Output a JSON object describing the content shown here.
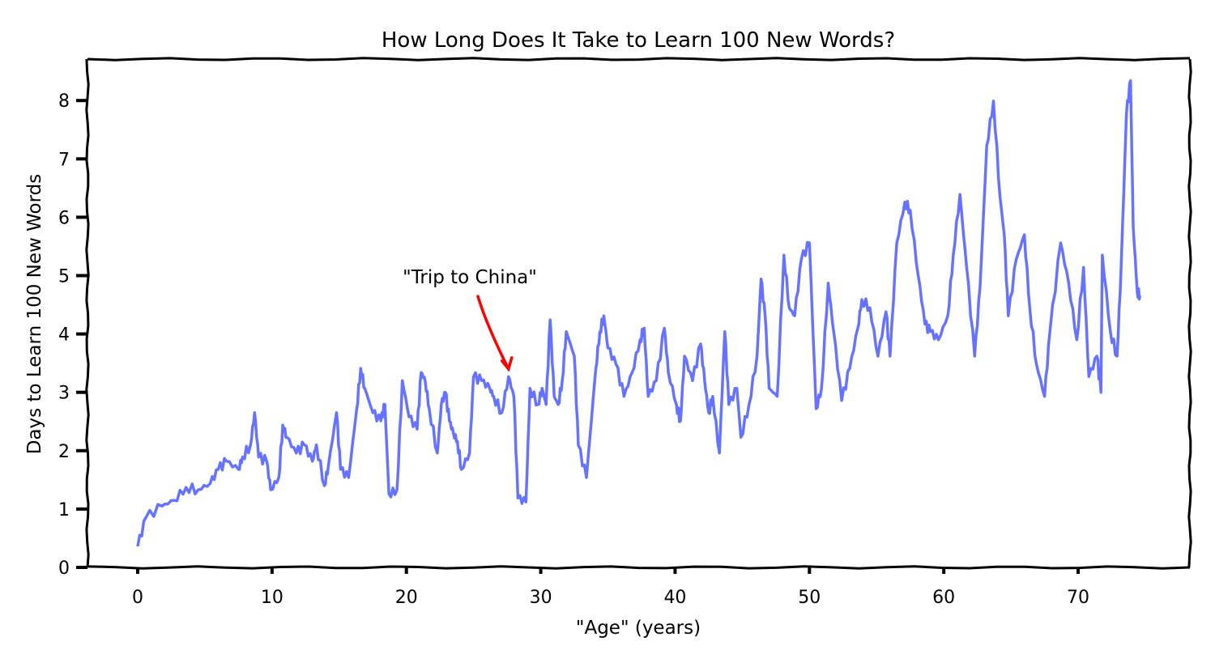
{
  "chart_data": {
    "type": "line",
    "title": "How Long Does It Take to Learn 100 New Words?",
    "xlabel": "\"Age\" (years)",
    "ylabel": "Days to Learn 100 New Words",
    "xlim": [
      -3.6,
      78
    ],
    "ylim": [
      -0.15,
      8.6
    ],
    "xticks": [
      0,
      10,
      20,
      30,
      40,
      50,
      60,
      70
    ],
    "yticks": [
      0,
      1,
      2,
      3,
      4,
      5,
      6,
      7,
      8
    ],
    "grid": false,
    "style": "xkcd",
    "series": [
      {
        "color": "#6673ff",
        "x": [
          0,
          0.6,
          1.8,
          2.7,
          3.6,
          4.5,
          5.4,
          6.0,
          6.6,
          7.5,
          7.8,
          8.4,
          8.7,
          9.0,
          9.6,
          9.9,
          10.5,
          10.8,
          11.1,
          11.8,
          12.4,
          13.0,
          13.3,
          13.9,
          14.2,
          14.8,
          15.1,
          15.7,
          16.3,
          16.6,
          16.9,
          17.5,
          18.1,
          18.4,
          18.7,
          19.3,
          19.7,
          20.2,
          20.8,
          21.1,
          21.4,
          21.7,
          22.3,
          22.6,
          22.9,
          23.2,
          23.5,
          23.8,
          24.1,
          24.7,
          25.0,
          25.6,
          26.2,
          26.5,
          27.1,
          27.6,
          28.0,
          28.3,
          28.9,
          29.2,
          29.8,
          30.1,
          30.4,
          30.7,
          31.0,
          31.3,
          31.6,
          31.9,
          32.5,
          32.8,
          33.4,
          34.1,
          34.4,
          34.7,
          35.0,
          35.6,
          36.2,
          36.8,
          37.4,
          37.7,
          38.0,
          38.6,
          39.2,
          39.5,
          40.1,
          40.4,
          40.7,
          41.3,
          41.9,
          42.2,
          42.5,
          42.8,
          43.3,
          43.7,
          44.0,
          44.6,
          44.9,
          45.5,
          46.1,
          46.4,
          46.7,
          47.0,
          47.6,
          48.1,
          48.5,
          48.9,
          49.4,
          50.0,
          50.5,
          50.9,
          51.4,
          51.8,
          52.4,
          53.0,
          53.6,
          53.9,
          54.5,
          55.1,
          55.7,
          56.0,
          56.5,
          57.1,
          57.5,
          58.1,
          58.6,
          59.0,
          59.6,
          60.3,
          60.7,
          61.2,
          61.7,
          62.3,
          62.7,
          63.2,
          63.7,
          64.2,
          64.5,
          64.8,
          65.4,
          66.0,
          66.4,
          66.9,
          67.5,
          67.9,
          68.7,
          69.3,
          69.9,
          70.4,
          70.8,
          71.4,
          71.7,
          71.8,
          72.4,
          72.9,
          73.2,
          73.6,
          73.9,
          74.1,
          74.4,
          74.6
        ],
        "values": [
          0.36,
          0.85,
          1.05,
          1.15,
          1.37,
          1.33,
          1.44,
          1.68,
          1.82,
          1.68,
          1.89,
          2.1,
          2.65,
          1.89,
          1.82,
          1.33,
          1.54,
          2.44,
          2.23,
          1.96,
          2.1,
          1.82,
          2.1,
          1.4,
          1.75,
          2.65,
          1.68,
          1.54,
          2.72,
          3.41,
          3.07,
          2.65,
          2.51,
          2.79,
          1.26,
          1.33,
          3.2,
          2.58,
          2.37,
          3.34,
          3.2,
          2.72,
          1.96,
          2.79,
          3.0,
          2.51,
          2.3,
          2.16,
          1.68,
          1.96,
          3.27,
          3.2,
          3.07,
          2.93,
          2.65,
          3.27,
          2.93,
          1.19,
          1.12,
          3.07,
          2.79,
          3.07,
          2.79,
          4.24,
          2.93,
          2.79,
          3.2,
          4.04,
          3.62,
          2.09,
          1.54,
          3.41,
          4.04,
          4.31,
          3.76,
          3.48,
          2.93,
          3.34,
          3.9,
          4.1,
          2.93,
          3.2,
          4.1,
          3.34,
          2.79,
          2.51,
          3.62,
          3.2,
          3.83,
          3.2,
          2.65,
          2.93,
          1.96,
          4.04,
          2.79,
          3.07,
          2.23,
          2.79,
          3.62,
          4.94,
          4.31,
          3.07,
          2.93,
          5.35,
          4.45,
          4.31,
          5.28,
          5.56,
          2.72,
          3.07,
          4.87,
          4.04,
          2.86,
          3.41,
          4.1,
          4.59,
          4.45,
          3.62,
          4.38,
          3.62,
          5.56,
          6.26,
          6.12,
          5.0,
          4.17,
          4.04,
          3.9,
          4.31,
          5.35,
          6.39,
          5.14,
          3.62,
          4.8,
          7.23,
          7.99,
          6.32,
          5.7,
          4.31,
          5.28,
          5.7,
          4.45,
          3.48,
          2.93,
          4.04,
          5.56,
          4.87,
          3.9,
          5.14,
          3.27,
          3.62,
          3.0,
          5.35,
          4.04,
          3.62,
          5.14,
          7.78,
          8.34,
          5.84,
          4.73,
          4.66
        ]
      }
    ],
    "annotations": [
      {
        "text": "\"Trip to China\"",
        "color": "#ff0000",
        "x": 27.6,
        "y": 3.4
      }
    ]
  }
}
